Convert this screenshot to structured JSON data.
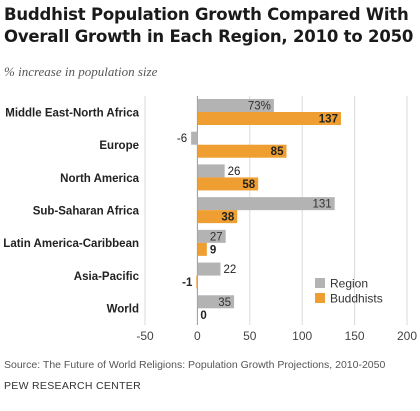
{
  "title": "Buddhist Population Growth Compared With Overall Growth in Each Region, 2010 to 2050",
  "subtitle": "% increase in population size",
  "source": "Source: The Future of World Religions: Population Growth Projections, 2010-2050",
  "credit": "PEW RESEARCH CENTER",
  "colors": {
    "region": "#b3b3b3",
    "buddhists": "#ef9e31",
    "grid": "#d9d9d9",
    "text": "#222222"
  },
  "chart_data": {
    "type": "bar",
    "orientation": "horizontal",
    "categories": [
      "Middle East-North Africa",
      "Europe",
      "North America",
      "Sub-Saharan Africa",
      "Latin America-Caribbean",
      "Asia-Pacific",
      "World"
    ],
    "series": [
      {
        "name": "Region",
        "values": [
          73,
          -6,
          26,
          131,
          27,
          22,
          35
        ],
        "labels": [
          "73%",
          "-6",
          "26",
          "131",
          "27",
          "22",
          "35"
        ]
      },
      {
        "name": "Buddhists",
        "values": [
          137,
          85,
          58,
          38,
          9,
          -1,
          0
        ],
        "labels": [
          "137",
          "85",
          "58",
          "38",
          "9",
          "-1",
          "0"
        ]
      }
    ],
    "xlim": [
      -50,
      200
    ],
    "xticks": [
      -50,
      0,
      50,
      100,
      150,
      200
    ],
    "grid": true,
    "legend_position": "bottom-right"
  }
}
